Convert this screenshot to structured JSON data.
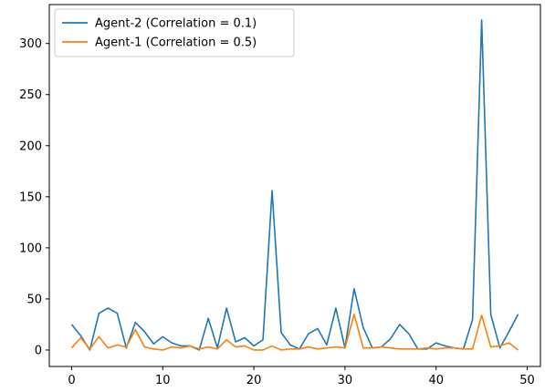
{
  "chart_data": {
    "type": "line",
    "title": "",
    "xlabel": "",
    "ylabel": "",
    "xlim": [
      -2.45,
      51.45
    ],
    "ylim": [
      -16.1,
      338.1
    ],
    "xticks": [
      0,
      10,
      20,
      30,
      40,
      50
    ],
    "yticks": [
      0,
      50,
      100,
      150,
      200,
      250,
      300
    ],
    "grid": false,
    "legend_position": "top-left",
    "x": [
      0,
      1,
      2,
      3,
      4,
      5,
      6,
      7,
      8,
      9,
      10,
      11,
      12,
      13,
      14,
      15,
      16,
      17,
      18,
      19,
      20,
      21,
      22,
      23,
      24,
      25,
      26,
      27,
      28,
      29,
      30,
      31,
      32,
      33,
      34,
      35,
      36,
      37,
      38,
      39,
      40,
      41,
      42,
      43,
      44,
      45,
      46,
      47,
      48,
      49
    ],
    "series": [
      {
        "name": "Agent-2 (Correlation = 0.1)",
        "color": "#1f77b4",
        "values": [
          25,
          14,
          0,
          36,
          41,
          36,
          2,
          27,
          18,
          6,
          13,
          7,
          4,
          4,
          0,
          31,
          2,
          41,
          8,
          12,
          4,
          10,
          156,
          17,
          5,
          1,
          16,
          21,
          5,
          41,
          2,
          60,
          22,
          2,
          3,
          11,
          25,
          16,
          1,
          1,
          7,
          4,
          2,
          1,
          30,
          323,
          35,
          2,
          18,
          35
        ]
      },
      {
        "name": "Agent-1 (Correlation = 0.5)",
        "color": "#ff7f0e",
        "values": [
          2,
          12,
          1,
          13,
          2,
          5,
          3,
          20,
          3,
          1,
          0,
          3,
          2,
          4,
          1,
          3,
          1,
          10,
          3,
          4,
          0,
          0,
          4,
          0,
          1,
          1,
          3,
          1,
          2,
          3,
          2,
          35,
          2,
          2,
          3,
          2,
          1,
          1,
          1,
          2,
          1,
          2,
          2,
          1,
          1,
          34,
          3,
          4,
          7,
          0
        ]
      }
    ]
  }
}
